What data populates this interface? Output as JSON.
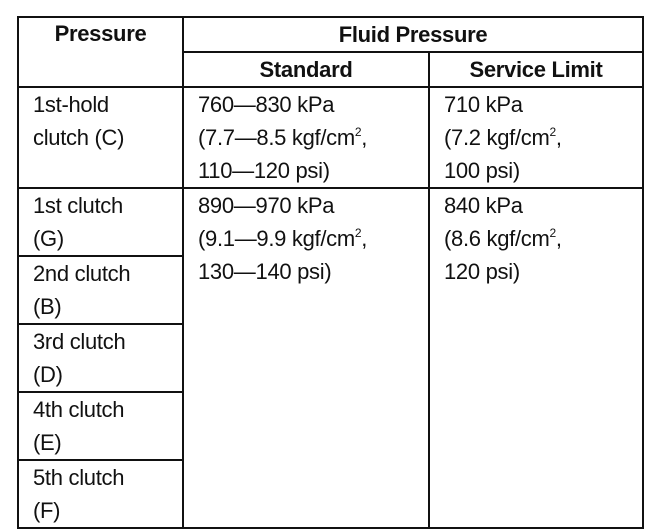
{
  "headers": {
    "pressure": "Pressure",
    "fluid_pressure": "Fluid Pressure",
    "standard": "Standard",
    "service_limit": "Service Limit"
  },
  "rows": [
    {
      "clutch": [
        "1st-hold",
        "clutch (C)"
      ],
      "standard": [
        "760—830 kPa",
        "(7.7—8.5 kgf/cm",
        "2",
        ",",
        "110—120 psi)"
      ],
      "service_limit": [
        "710 kPa",
        "(7.2 kgf/cm",
        "2",
        ",",
        "100 psi)"
      ]
    },
    {
      "clutch": [
        "1st clutch",
        "(G)"
      ],
      "standard": [
        "890—970 kPa",
        "(9.1—9.9 kgf/cm",
        "2",
        ",",
        "130—140 psi)"
      ],
      "service_limit": [
        "840 kPa",
        "(8.6 kgf/cm",
        "2",
        ",",
        "120 psi)"
      ]
    },
    {
      "clutch": [
        "2nd clutch",
        "(B)"
      ]
    },
    {
      "clutch": [
        "3rd clutch",
        "(D)"
      ]
    },
    {
      "clutch": [
        "4th clutch",
        "(E)"
      ]
    },
    {
      "clutch": [
        "5th clutch",
        "(F)"
      ]
    }
  ]
}
